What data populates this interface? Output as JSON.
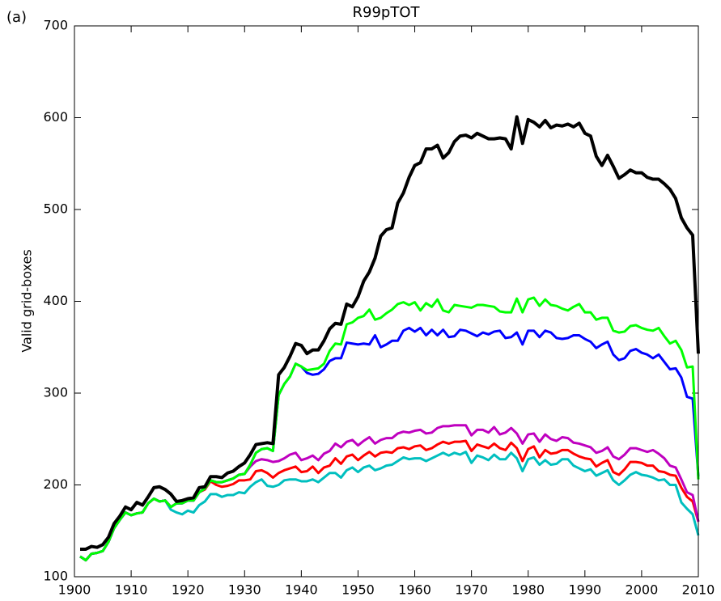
{
  "chart_data": {
    "type": "line",
    "panel_label": "(a)",
    "title": "R99pTOT",
    "y_label": "Valid grid-boxes",
    "x": [
      1901,
      1902,
      1903,
      1904,
      1905,
      1906,
      1907,
      1908,
      1909,
      1910,
      1911,
      1912,
      1913,
      1914,
      1915,
      1916,
      1917,
      1918,
      1919,
      1920,
      1921,
      1922,
      1923,
      1924,
      1925,
      1926,
      1927,
      1928,
      1929,
      1930,
      1931,
      1932,
      1933,
      1934,
      1935,
      1936,
      1937,
      1938,
      1939,
      1940,
      1941,
      1942,
      1943,
      1944,
      1945,
      1946,
      1947,
      1948,
      1949,
      1950,
      1951,
      1952,
      1953,
      1954,
      1955,
      1956,
      1957,
      1958,
      1959,
      1960,
      1961,
      1962,
      1963,
      1964,
      1965,
      1966,
      1967,
      1968,
      1969,
      1970,
      1971,
      1972,
      1973,
      1974,
      1975,
      1976,
      1977,
      1978,
      1979,
      1980,
      1981,
      1982,
      1983,
      1984,
      1985,
      1986,
      1987,
      1988,
      1989,
      1990,
      1991,
      1992,
      1993,
      1994,
      1995,
      1996,
      1997,
      1998,
      1999,
      2000,
      2001,
      2002,
      2003,
      2004,
      2005,
      2006,
      2007,
      2008,
      2009,
      2010
    ],
    "series": [
      {
        "color": "#00bfbf",
        "width": 3,
        "values": [
          122,
          118,
          125,
          126,
          128,
          138,
          153,
          162,
          170,
          167,
          169,
          170,
          180,
          185,
          182,
          183,
          173,
          170,
          168,
          172,
          170,
          178,
          182,
          190,
          190,
          187,
          189,
          189,
          192,
          191,
          198,
          203,
          206,
          199,
          198,
          200,
          205,
          206,
          206,
          204,
          204,
          206,
          203,
          208,
          213,
          213,
          208,
          216,
          219,
          214,
          219,
          221,
          216,
          218,
          221,
          222,
          226,
          230,
          228,
          229,
          229,
          226,
          229,
          232,
          235,
          232,
          235,
          233,
          236,
          224,
          232,
          230,
          227,
          233,
          228,
          228,
          235,
          229,
          215,
          228,
          230,
          222,
          227,
          222,
          223,
          228,
          228,
          221,
          218,
          215,
          217,
          210,
          213,
          216,
          205,
          200,
          205,
          211,
          214,
          211,
          210,
          208,
          205,
          206,
          200,
          200,
          181,
          174,
          168,
          145
        ]
      },
      {
        "color": "#ff0000",
        "width": 3,
        "values": [
          122,
          118,
          125,
          126,
          128,
          138,
          153,
          162,
          170,
          167,
          169,
          170,
          180,
          185,
          182,
          183,
          176,
          180,
          180,
          183,
          183,
          192,
          195,
          204,
          200,
          198,
          199,
          201,
          205,
          205,
          206,
          215,
          216,
          213,
          208,
          213,
          216,
          218,
          220,
          214,
          215,
          220,
          213,
          219,
          221,
          229,
          223,
          231,
          233,
          227,
          232,
          236,
          231,
          235,
          236,
          235,
          240,
          241,
          239,
          242,
          243,
          238,
          240,
          244,
          247,
          245,
          247,
          247,
          248,
          237,
          244,
          242,
          240,
          245,
          240,
          238,
          246,
          240,
          226,
          239,
          242,
          230,
          238,
          234,
          235,
          238,
          238,
          234,
          231,
          229,
          228,
          220,
          224,
          227,
          214,
          211,
          217,
          225,
          225,
          224,
          221,
          221,
          215,
          214,
          211,
          210,
          197,
          187,
          182,
          160
        ]
      },
      {
        "color": "#bf00bf",
        "width": 3,
        "values": [
          122,
          118,
          125,
          126,
          128,
          138,
          153,
          162,
          170,
          167,
          169,
          170,
          180,
          185,
          182,
          183,
          176,
          180,
          180,
          183,
          183,
          192,
          196,
          205,
          203,
          203,
          205,
          207,
          211,
          212,
          220,
          226,
          228,
          227,
          225,
          226,
          229,
          233,
          235,
          227,
          229,
          232,
          227,
          234,
          237,
          245,
          241,
          247,
          249,
          243,
          248,
          252,
          245,
          249,
          251,
          251,
          256,
          258,
          257,
          259,
          260,
          256,
          257,
          262,
          264,
          264,
          265,
          265,
          265,
          254,
          260,
          260,
          257,
          263,
          255,
          257,
          262,
          256,
          245,
          255,
          256,
          247,
          255,
          250,
          248,
          252,
          251,
          246,
          245,
          243,
          241,
          235,
          237,
          241,
          231,
          228,
          233,
          240,
          240,
          238,
          236,
          238,
          234,
          229,
          221,
          219,
          206,
          192,
          189,
          160
        ]
      },
      {
        "color": "#0000ff",
        "width": 3,
        "values": [
          122,
          118,
          125,
          126,
          128,
          138,
          153,
          162,
          170,
          167,
          169,
          170,
          180,
          185,
          182,
          183,
          176,
          180,
          180,
          183,
          183,
          192,
          196,
          205,
          203,
          203,
          205,
          207,
          211,
          212,
          222,
          235,
          239,
          240,
          237,
          298,
          310,
          318,
          332,
          329,
          322,
          320,
          321,
          326,
          335,
          338,
          338,
          355,
          354,
          353,
          354,
          353,
          363,
          350,
          353,
          357,
          357,
          368,
          371,
          367,
          371,
          363,
          369,
          363,
          369,
          361,
          362,
          369,
          368,
          365,
          362,
          366,
          364,
          367,
          368,
          360,
          361,
          366,
          353,
          368,
          368,
          361,
          368,
          366,
          360,
          359,
          360,
          363,
          363,
          359,
          356,
          349,
          353,
          356,
          342,
          336,
          338,
          346,
          348,
          344,
          342,
          338,
          342,
          334,
          326,
          327,
          317,
          296,
          294,
          209
        ]
      },
      {
        "color": "#00ff00",
        "width": 3,
        "values": [
          122,
          118,
          125,
          126,
          128,
          138,
          153,
          162,
          170,
          167,
          169,
          170,
          180,
          185,
          182,
          183,
          176,
          180,
          180,
          183,
          183,
          192,
          196,
          205,
          203,
          203,
          205,
          207,
          211,
          212,
          222,
          235,
          239,
          240,
          237,
          298,
          310,
          318,
          332,
          329,
          325,
          326,
          327,
          332,
          346,
          354,
          353,
          375,
          377,
          382,
          384,
          391,
          380,
          382,
          387,
          391,
          397,
          399,
          396,
          399,
          390,
          398,
          394,
          402,
          390,
          388,
          396,
          395,
          394,
          393,
          396,
          396,
          395,
          394,
          389,
          388,
          388,
          403,
          388,
          402,
          404,
          395,
          402,
          396,
          395,
          392,
          390,
          394,
          397,
          388,
          388,
          380,
          382,
          382,
          368,
          366,
          367,
          373,
          374,
          371,
          369,
          368,
          371,
          362,
          354,
          357,
          347,
          328,
          329,
          206
        ]
      },
      {
        "color": "#000000",
        "width": 4,
        "values": [
          130,
          130,
          133,
          132,
          135,
          143,
          158,
          166,
          176,
          173,
          181,
          178,
          187,
          197,
          198,
          195,
          190,
          182,
          183,
          185,
          186,
          197,
          198,
          209,
          209,
          208,
          213,
          215,
          220,
          224,
          233,
          244,
          245,
          246,
          245,
          320,
          328,
          340,
          354,
          352,
          343,
          347,
          347,
          357,
          370,
          376,
          375,
          397,
          394,
          405,
          422,
          432,
          447,
          471,
          478,
          480,
          507,
          518,
          535,
          548,
          551,
          566,
          566,
          570,
          556,
          562,
          574,
          580,
          581,
          578,
          583,
          580,
          577,
          577,
          578,
          577,
          566,
          601,
          572,
          598,
          595,
          590,
          597,
          589,
          592,
          591,
          593,
          590,
          594,
          583,
          580,
          558,
          548,
          559,
          547,
          534,
          538,
          543,
          540,
          540,
          535,
          533,
          533,
          528,
          522,
          512,
          491,
          480,
          472,
          343
        ]
      }
    ],
    "xlim": [
      1900,
      2010
    ],
    "xticks": [
      1900,
      1910,
      1920,
      1930,
      1940,
      1950,
      1960,
      1970,
      1980,
      1990,
      2000,
      2010
    ],
    "ylim": [
      100,
      700
    ],
    "yticks": [
      100,
      200,
      300,
      400,
      500,
      600,
      700
    ]
  }
}
